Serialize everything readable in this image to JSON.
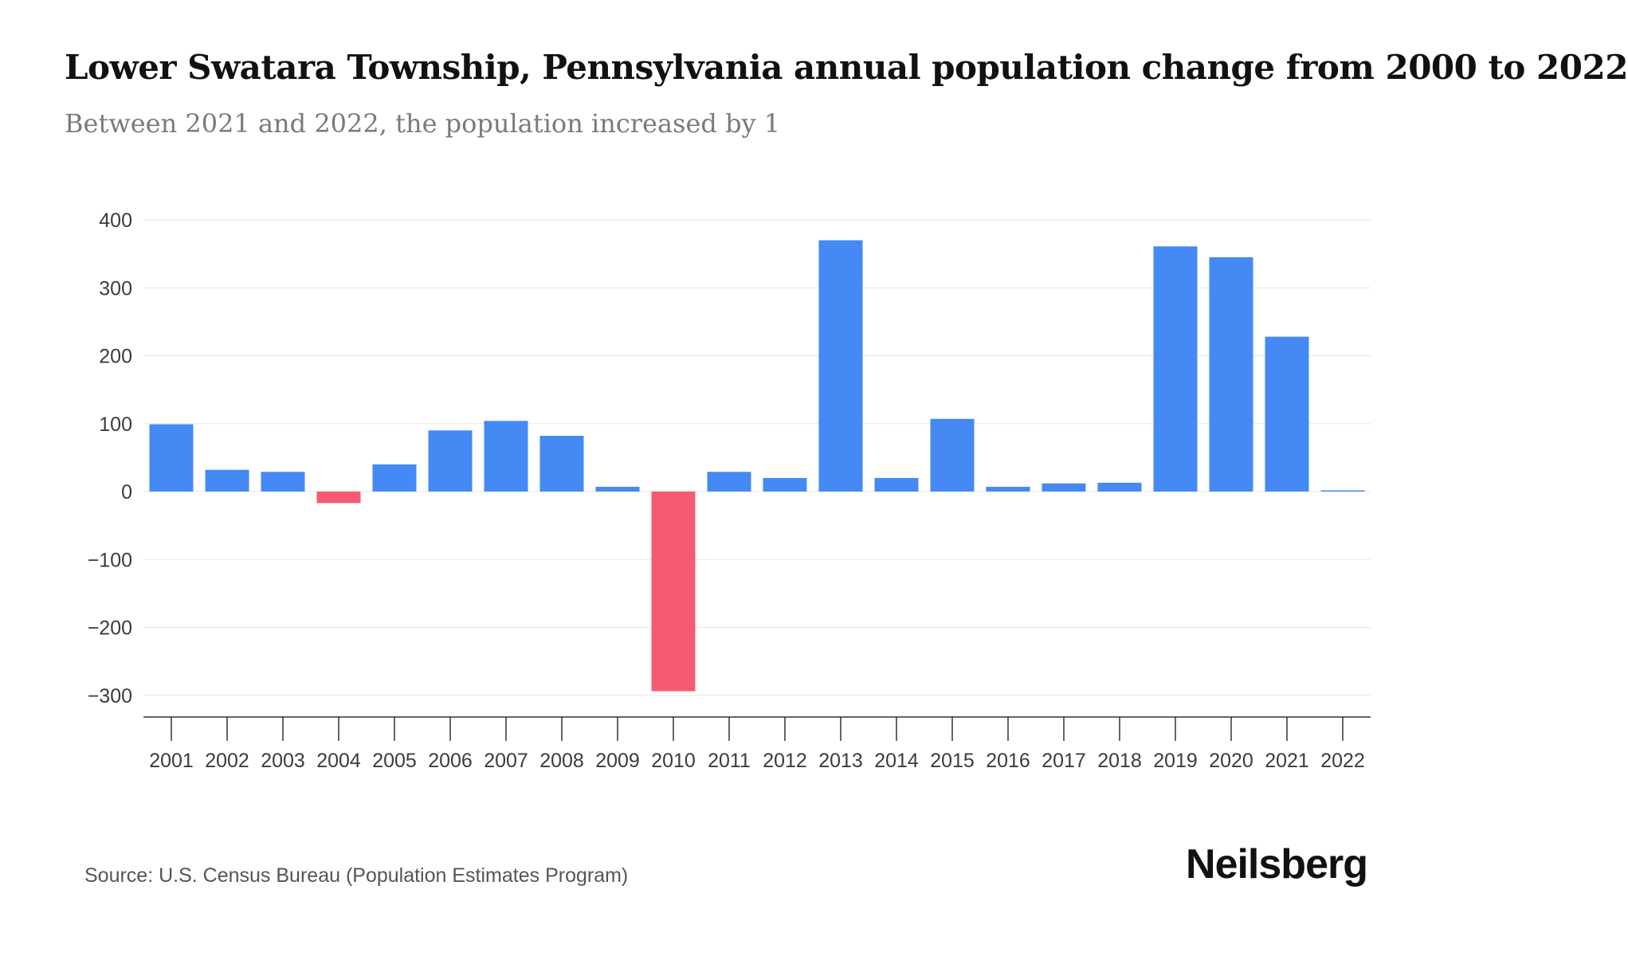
{
  "header": {
    "title": "Lower Swatara Township, Pennsylvania annual population change from 2000 to 2022",
    "subtitle": "Between 2021 and 2022, the population increased by 1"
  },
  "footer": {
    "source": "Source: U.S. Census Bureau (Population Estimates Program)",
    "brand": "Neilsberg"
  },
  "colors": {
    "positive": "#4589f4",
    "negative": "#f65a73",
    "grid": "#ececec",
    "axis": "#333333"
  },
  "chart_data": {
    "type": "bar",
    "title": "Lower Swatara Township, Pennsylvania annual population change from 2000 to 2022",
    "subtitle": "Between 2021 and 2022, the population increased by 1",
    "categories": [
      "2001",
      "2002",
      "2003",
      "2004",
      "2005",
      "2006",
      "2007",
      "2008",
      "2009",
      "2010",
      "2011",
      "2012",
      "2013",
      "2014",
      "2015",
      "2016",
      "2017",
      "2018",
      "2019",
      "2020",
      "2021",
      "2022"
    ],
    "values": [
      99,
      32,
      29,
      -17,
      40,
      90,
      104,
      82,
      7,
      -294,
      29,
      20,
      370,
      20,
      107,
      7,
      12,
      13,
      361,
      345,
      228,
      1
    ],
    "yticks": [
      400,
      300,
      200,
      100,
      0,
      -100,
      -200,
      -300
    ],
    "ytick_labels": [
      "400",
      "300",
      "200",
      "100",
      "0",
      "−100",
      "−200",
      "−300"
    ],
    "ylim": [
      -332,
      400
    ],
    "xlabel": "",
    "ylabel": "",
    "grid": true,
    "legend": "none"
  }
}
